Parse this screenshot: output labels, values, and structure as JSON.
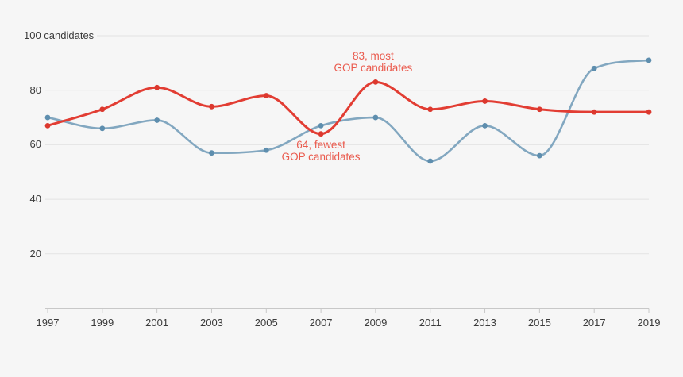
{
  "chart_data": {
    "type": "line",
    "title": "",
    "xlabel": "",
    "ylabel": "candidates",
    "x": [
      1997,
      1999,
      2001,
      2003,
      2005,
      2007,
      2009,
      2011,
      2013,
      2015,
      2017,
      2019
    ],
    "series": [
      {
        "name": "blue series (unlabeled)",
        "color": "#82a7c0",
        "point_color": "#5e8eae",
        "values": [
          70,
          66,
          69,
          57,
          58,
          67,
          70,
          54,
          67,
          56,
          88,
          91
        ]
      },
      {
        "name": "GOP candidates (red)",
        "color": "#e23d33",
        "point_color": "#dc382e",
        "values": [
          67,
          73,
          81,
          74,
          78,
          64,
          83,
          73,
          76,
          73,
          72,
          72
        ]
      }
    ],
    "ylim": [
      0,
      100
    ],
    "yticks": [
      20,
      40,
      60,
      80,
      100
    ],
    "ytick_top_label": "100 candidates",
    "grid": "horizontal",
    "legend": "none",
    "annotations": [
      {
        "text_lines": [
          "83, most",
          "GOP candidates"
        ],
        "anchor_x": 2009,
        "anchor_y": 83,
        "color": "#ea5a4d",
        "position": "above"
      },
      {
        "text_lines": [
          "64, fewest",
          "GOP candidates"
        ],
        "anchor_x": 2007,
        "anchor_y": 64,
        "color": "#ea5a4d",
        "position": "below"
      }
    ]
  },
  "axis": {
    "x_tick_labels": [
      "1997",
      "1999",
      "2001",
      "2003",
      "2005",
      "2007",
      "2009",
      "2011",
      "2013",
      "2015",
      "2017",
      "2019"
    ],
    "y_tick_labels": [
      "20",
      "40",
      "60",
      "80",
      "100 candidates"
    ]
  },
  "colors": {
    "background": "#f6f6f6",
    "gridline": "#e3e3e3",
    "axis_line": "#c8c8c8",
    "tick_mark": "#c8c8c8",
    "axis_text": "#3b3b3b",
    "annotation_red": "#ea5a4d",
    "line_red": "#e23d33",
    "dot_red": "#dc382e",
    "line_blue": "#82a7c0",
    "dot_blue": "#5e8eae"
  }
}
